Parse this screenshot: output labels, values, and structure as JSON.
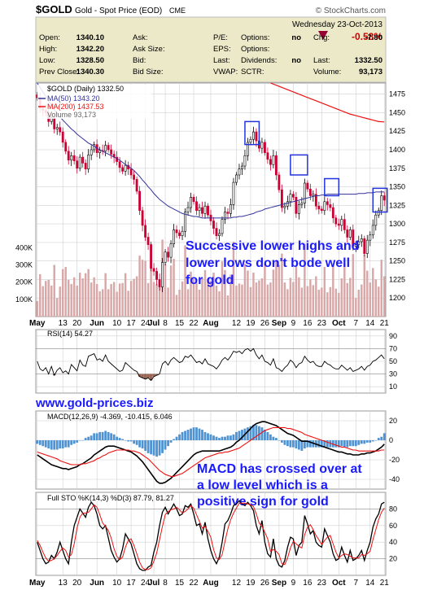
{
  "header": {
    "symbol": "$GOLD",
    "name": "Gold - Spot Price (EOD)",
    "exchange": "CME",
    "watermark": "© StockCharts.com",
    "date": "Wednesday 23-Oct-2013",
    "change_pct": "-0.58%",
    "down_arrow": "down-triangle",
    "quote": [
      [
        {
          "label": "Open:",
          "value": "1340.10"
        },
        {
          "label": "Ask:",
          "value": ""
        },
        {
          "label": "P/E:",
          "value": ""
        },
        {
          "label": "Options:",
          "value": "no"
        },
        {
          "label": "Chg:",
          "value": "-7.80"
        }
      ],
      [
        {
          "label": "High:",
          "value": "1342.20"
        },
        {
          "label": "Ask Size:",
          "value": ""
        },
        {
          "label": "EPS:",
          "value": ""
        },
        {
          "label": "Options:",
          "value": ""
        },
        {
          "label": "",
          "value": ""
        }
      ],
      [
        {
          "label": "Low:",
          "value": "1328.50"
        },
        {
          "label": "Bid:",
          "value": ""
        },
        {
          "label": "Last:",
          "value": ""
        },
        {
          "label": "Dividends:",
          "value": "no"
        },
        {
          "label": "Last:",
          "value": "1332.50"
        }
      ],
      [
        {
          "label": "Prev Close:",
          "value": "1340.30"
        },
        {
          "label": "Bid Size:",
          "value": ""
        },
        {
          "label": "VWAP:",
          "value": ""
        },
        {
          "label": "SCTR:",
          "value": ""
        },
        {
          "label": "Volume:",
          "value": "93,173"
        }
      ]
    ],
    "colors": {
      "panel_bg": "#ece9c8",
      "negative": "#cc0000",
      "arrow": "#990033"
    }
  },
  "chart_data": [
    {
      "type": "candlestick",
      "legend": [
        "$GOLD (Daily) 1332.50",
        "MA(50) 1343.20",
        "MA(200) 1437.53",
        "Volume 93,173"
      ],
      "ylim": [
        1175,
        1490
      ],
      "yticks": [
        1200,
        1225,
        1250,
        1275,
        1300,
        1325,
        1350,
        1375,
        1400,
        1425,
        1450,
        1475
      ],
      "volume_ticks": [
        "100K",
        "200K",
        "300K",
        "400K"
      ],
      "volume_tick_values": [
        100000,
        200000,
        300000,
        400000
      ],
      "volume_max": 520000,
      "x_labels": [
        "May",
        "13",
        "20",
        "Jun",
        "10",
        "17",
        "24",
        "Jul",
        "8",
        "15",
        "22",
        "Aug",
        "12",
        "19",
        "26",
        "Sep",
        "9",
        "16",
        "23",
        "Oct",
        "7",
        "14",
        "21"
      ],
      "x_label_days": [
        0,
        9,
        14,
        21,
        28,
        33,
        38,
        41,
        45,
        50,
        55,
        61,
        70,
        75,
        80,
        85,
        90,
        95,
        100,
        106,
        112,
        117,
        122
      ],
      "close": [
        1470,
        1456,
        1453,
        1450,
        1438,
        1443,
        1428,
        1430,
        1424,
        1410,
        1398,
        1386,
        1392,
        1385,
        1375,
        1390,
        1382,
        1374,
        1393,
        1400,
        1407,
        1396,
        1399,
        1398,
        1406,
        1400,
        1394,
        1390,
        1384,
        1376,
        1371,
        1379,
        1374,
        1366,
        1360,
        1344,
        1318,
        1298,
        1282,
        1272,
        1240,
        1236,
        1225,
        1215,
        1248,
        1262,
        1255,
        1273,
        1292,
        1288,
        1284,
        1290,
        1316,
        1322,
        1336,
        1330,
        1318,
        1322,
        1314,
        1324,
        1312,
        1304,
        1294,
        1284,
        1287,
        1306,
        1316,
        1314,
        1326,
        1356,
        1366,
        1374,
        1378,
        1392,
        1410,
        1414,
        1424,
        1412,
        1402,
        1410,
        1396,
        1387,
        1380,
        1392,
        1366,
        1346,
        1322,
        1324,
        1330,
        1340,
        1336,
        1314,
        1326,
        1328,
        1355,
        1347,
        1338,
        1340,
        1324,
        1320,
        1318,
        1330,
        1326,
        1322,
        1308,
        1300,
        1298,
        1306,
        1292,
        1282,
        1292,
        1270,
        1272,
        1276,
        1280,
        1260,
        1278,
        1285,
        1298,
        1312,
        1318,
        1338,
        1332
      ],
      "ma50": [
        1490,
        1484,
        1478,
        1472,
        1466,
        1460,
        1454,
        1449,
        1444,
        1440,
        1436,
        1432,
        1428,
        1425,
        1421,
        1418,
        1415,
        1412,
        1409,
        1407,
        1405,
        1402,
        1400,
        1398,
        1396,
        1394,
        1392,
        1390,
        1388,
        1386,
        1383,
        1380,
        1378,
        1375,
        1372,
        1368,
        1364,
        1359,
        1355,
        1350,
        1346,
        1341,
        1337,
        1333,
        1330,
        1327,
        1324,
        1322,
        1320,
        1318,
        1316,
        1314,
        1313,
        1312,
        1311,
        1310,
        1310,
        1309,
        1308,
        1308,
        1308,
        1308,
        1308,
        1308,
        1308,
        1308,
        1308,
        1308,
        1308,
        1309,
        1309,
        1310,
        1310,
        1311,
        1312,
        1313,
        1314,
        1316,
        1317,
        1318,
        1320,
        1321,
        1322,
        1323,
        1324,
        1325,
        1326,
        1327,
        1328,
        1329,
        1330,
        1331,
        1332,
        1333,
        1334,
        1335,
        1336,
        1337,
        1338,
        1338,
        1339,
        1339,
        1340,
        1340,
        1340,
        1340,
        1340,
        1340,
        1340,
        1340,
        1340,
        1340,
        1340,
        1341,
        1341,
        1341,
        1342,
        1342,
        1342,
        1343,
        1343,
        1343,
        1343
      ],
      "ma200": {
        "x_start": 82,
        "values": [
          1490,
          1487,
          1484,
          1481,
          1478,
          1475,
          1472,
          1469,
          1466,
          1463,
          1460,
          1457,
          1454,
          1451,
          1448,
          1446,
          1444,
          1442,
          1440,
          1438,
          1437.5
        ]
      },
      "annotations": [
        {
          "text": "Successive lower highs and",
          "line": 0
        },
        {
          "text": "lower lows don't bode well",
          "line": 1
        },
        {
          "text": "for gold",
          "line": 2
        }
      ],
      "highlight_boxes": [
        {
          "day_from": 73,
          "day_to": 78,
          "price_from": 1407,
          "price_to": 1438
        },
        {
          "day_from": 89,
          "day_to": 95,
          "price_from": 1366,
          "price_to": 1393
        },
        {
          "day_from": 101,
          "day_to": 106,
          "price_from": 1338,
          "price_to": 1361
        },
        {
          "day_from": 118,
          "day_to": 123,
          "price_from": 1316,
          "price_to": 1348
        }
      ]
    },
    {
      "type": "line",
      "legend": "RSI(14) 54.27",
      "ylim": [
        0,
        100
      ],
      "yticks": [
        10,
        30,
        50,
        70,
        90
      ],
      "values": [
        50,
        38,
        35,
        40,
        30,
        42,
        28,
        36,
        40,
        32,
        35,
        30,
        45,
        40,
        35,
        52,
        44,
        42,
        58,
        60,
        62,
        52,
        54,
        50,
        60,
        50,
        46,
        42,
        38,
        34,
        36,
        48,
        44,
        40,
        36,
        34,
        26,
        24,
        22,
        24,
        20,
        26,
        28,
        30,
        46,
        50,
        44,
        52,
        56,
        52,
        48,
        50,
        58,
        56,
        60,
        54,
        48,
        50,
        46,
        54,
        46,
        44,
        42,
        38,
        44,
        52,
        56,
        52,
        58,
        66,
        64,
        66,
        62,
        68,
        70,
        66,
        70,
        60,
        54,
        60,
        50,
        48,
        44,
        54,
        40,
        38,
        34,
        40,
        44,
        52,
        48,
        40,
        46,
        48,
        58,
        52,
        48,
        50,
        44,
        42,
        42,
        50,
        46,
        44,
        40,
        38,
        38,
        44,
        40,
        36,
        40,
        34,
        36,
        38,
        42,
        36,
        42,
        44,
        50,
        52,
        56,
        60,
        54
      ]
    },
    {
      "type": "line",
      "legend": [
        "MACD(12,26,9) -4.369, -10.415, 6.046"
      ],
      "ylim": [
        -50,
        30
      ],
      "yticks": [
        -40,
        -20,
        0,
        20
      ],
      "macd": [
        -15,
        -17,
        -19,
        -21,
        -23,
        -25,
        -26,
        -27,
        -28,
        -29,
        -29,
        -30,
        -29,
        -28,
        -27,
        -25,
        -24,
        -22,
        -20,
        -18,
        -15,
        -13,
        -11,
        -9,
        -7,
        -6,
        -6,
        -6,
        -7,
        -8,
        -9,
        -10,
        -11,
        -12,
        -14,
        -16,
        -19,
        -22,
        -26,
        -30,
        -34,
        -38,
        -42,
        -44,
        -44,
        -43,
        -41,
        -39,
        -36,
        -33,
        -30,
        -27,
        -24,
        -21,
        -18,
        -15,
        -13,
        -12,
        -11,
        -11,
        -11,
        -11,
        -11,
        -11,
        -11,
        -10,
        -9,
        -8,
        -7,
        -5,
        -2,
        0,
        3,
        6,
        9,
        12,
        15,
        17,
        18,
        19,
        19,
        18,
        17,
        16,
        15,
        13,
        11,
        9,
        7,
        6,
        5,
        3,
        1,
        -1,
        -1,
        -1,
        -2,
        -3,
        -4,
        -5,
        -6,
        -7,
        -8,
        -9,
        -10,
        -11,
        -12,
        -12,
        -13,
        -14,
        -14,
        -15,
        -15,
        -15,
        -14,
        -14,
        -13,
        -13,
        -12,
        -11,
        -9,
        -7,
        -4
      ],
      "signal": [
        -12,
        -13,
        -14,
        -15,
        -16,
        -17,
        -18,
        -19,
        -21,
        -22,
        -23,
        -24,
        -25,
        -25,
        -25,
        -25,
        -24,
        -24,
        -23,
        -22,
        -21,
        -19,
        -18,
        -16,
        -15,
        -13,
        -12,
        -11,
        -10,
        -10,
        -10,
        -10,
        -10,
        -11,
        -11,
        -12,
        -13,
        -15,
        -17,
        -19,
        -22,
        -25,
        -28,
        -31,
        -33,
        -35,
        -36,
        -37,
        -37,
        -36,
        -35,
        -34,
        -32,
        -30,
        -28,
        -26,
        -24,
        -22,
        -20,
        -18,
        -17,
        -16,
        -15,
        -14,
        -13,
        -13,
        -12,
        -12,
        -11,
        -10,
        -9,
        -8,
        -6,
        -4,
        -2,
        0,
        2,
        4,
        6,
        8,
        10,
        11,
        12,
        13,
        13,
        13,
        13,
        13,
        12,
        12,
        11,
        10,
        9,
        8,
        6,
        5,
        4,
        3,
        2,
        1,
        0,
        -1,
        -2,
        -3,
        -4,
        -5,
        -6,
        -7,
        -7,
        -8,
        -9,
        -10,
        -10,
        -11,
        -11,
        -11,
        -11,
        -11,
        -11,
        -11,
        -11,
        -10,
        -10
      ],
      "annotations": [
        {
          "text": "MACD has crossed over at",
          "line": 0
        },
        {
          "text": "a low level which is a",
          "line": 1
        },
        {
          "text": "positive sign for gold",
          "line": 2
        }
      ]
    },
    {
      "type": "line",
      "legend": "Full STO %K(14,3) %D(3) 87.79, 81.27",
      "ylim": [
        0,
        100
      ],
      "yticks": [
        20,
        40,
        60,
        80
      ],
      "k": [
        40,
        30,
        20,
        14,
        16,
        24,
        20,
        28,
        40,
        30,
        20,
        14,
        40,
        60,
        70,
        80,
        75,
        70,
        82,
        88,
        84,
        74,
        60,
        56,
        60,
        45,
        30,
        22,
        16,
        20,
        32,
        50,
        44,
        38,
        26,
        14,
        8,
        6,
        6,
        10,
        12,
        28,
        40,
        60,
        76,
        82,
        74,
        80,
        86,
        80,
        72,
        74,
        84,
        82,
        86,
        74,
        60,
        62,
        50,
        64,
        44,
        30,
        20,
        14,
        22,
        40,
        62,
        66,
        74,
        84,
        86,
        90,
        86,
        84,
        88,
        84,
        78,
        60,
        50,
        66,
        40,
        26,
        22,
        44,
        20,
        12,
        10,
        18,
        34,
        46,
        44,
        24,
        36,
        40,
        72,
        62,
        50,
        54,
        40,
        36,
        34,
        56,
        48,
        40,
        26,
        18,
        20,
        34,
        24,
        16,
        30,
        18,
        20,
        24,
        30,
        18,
        30,
        40,
        58,
        68,
        74,
        86,
        88
      ],
      "d": [
        42,
        36,
        28,
        21,
        17,
        18,
        20,
        24,
        29,
        33,
        30,
        22,
        25,
        38,
        57,
        70,
        75,
        75,
        76,
        80,
        85,
        82,
        73,
        63,
        59,
        54,
        45,
        32,
        23,
        19,
        22,
        34,
        42,
        44,
        36,
        26,
        16,
        9,
        7,
        7,
        9,
        17,
        27,
        43,
        59,
        73,
        77,
        79,
        80,
        82,
        79,
        75,
        77,
        80,
        84,
        81,
        73,
        65,
        57,
        59,
        53,
        46,
        31,
        21,
        19,
        25,
        41,
        56,
        67,
        75,
        81,
        87,
        87,
        87,
        86,
        85,
        83,
        74,
        63,
        59,
        52,
        44,
        29,
        31,
        29,
        25,
        14,
        13,
        21,
        33,
        41,
        38,
        35,
        33,
        49,
        58,
        61,
        55,
        48,
        43,
        37,
        42,
        46,
        48,
        38,
        28,
        21,
        24,
        26,
        25,
        23,
        21,
        21,
        21,
        25,
        24,
        26,
        29,
        43,
        55,
        67,
        76,
        81
      ]
    }
  ],
  "watermark_url": "www.gold-prices.biz",
  "x_axis_labels_bottom": [
    "May",
    "13",
    "20",
    "Jun",
    "10",
    "17",
    "24",
    "Jul",
    "8",
    "15",
    "22",
    "Aug",
    "12",
    "19",
    "26",
    "Sep",
    "9",
    "16",
    "23",
    "Oct",
    "7",
    "14",
    "21"
  ],
  "colors": {
    "up": "#ffffff",
    "down": "#cc0033",
    "volume": "#d8a8a8",
    "ma50": "#33339c",
    "ma200": "#ee1111",
    "annotation": "#1a1aff",
    "panel_border": "#999999",
    "grid": "#d0d0d0",
    "hist": "#4f93d3",
    "black": "#000000",
    "red": "#ee1111"
  }
}
